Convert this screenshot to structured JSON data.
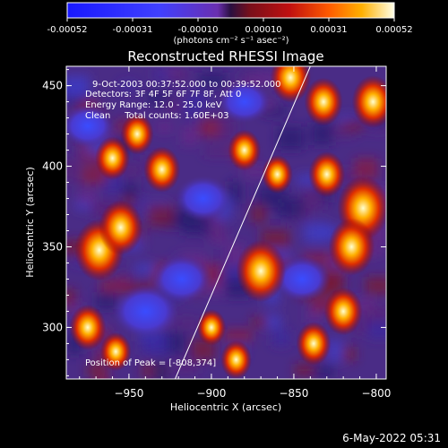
{
  "colorbar": {
    "tick_labels": [
      "-0.00052",
      "-0.00031",
      "-0.00010",
      "0.00010",
      "0.00031",
      "0.00052"
    ],
    "unit_label": "(photons cm⁻² s⁻¹ asec⁻²)",
    "range": [
      -0.00052,
      0.00052
    ]
  },
  "chart_data": {
    "type": "heatmap",
    "title": "Reconstructed RHESSI Image",
    "xlabel": "Heliocentric X (arcsec)",
    "ylabel": "Heliocentric Y (arcsec)",
    "xlim": [
      -988,
      -794
    ],
    "ylim": [
      268,
      462
    ],
    "x_ticks": [
      -950,
      -900,
      -850,
      -800
    ],
    "x_tick_labels": [
      "−950",
      "−900",
      "−850",
      "−800"
    ],
    "y_ticks": [
      300,
      350,
      400,
      450
    ],
    "y_tick_labels": [
      "300",
      "350",
      "400",
      "450"
    ],
    "annotations": [
      "9-Oct-2003 00:37:52.000 to 00:39:52.000",
      "Detectors: 3F 4F 5F 6F 7F 8F, Att 0",
      "Energy Range: 12.0 - 25.0 keV",
      "Clean     Total counts: 1.60E+03"
    ],
    "peak_label": "Position of Peak = [-808,374]",
    "peak_position": [
      -808,
      374
    ],
    "limb_line": [
      [
        -922,
        268
      ],
      [
        -840,
        462
      ]
    ],
    "hot_spots": [
      {
        "x": -968,
        "y": 348,
        "level": 0.95
      },
      {
        "x": -955,
        "y": 362,
        "level": 0.8
      },
      {
        "x": -960,
        "y": 405,
        "level": 0.55
      },
      {
        "x": -945,
        "y": 420,
        "level": 0.5
      },
      {
        "x": -930,
        "y": 398,
        "level": 0.6
      },
      {
        "x": -975,
        "y": 300,
        "level": 0.6
      },
      {
        "x": -958,
        "y": 285,
        "level": 0.45
      },
      {
        "x": -870,
        "y": 335,
        "level": 0.95
      },
      {
        "x": -852,
        "y": 455,
        "level": 0.7
      },
      {
        "x": -832,
        "y": 440,
        "level": 0.65
      },
      {
        "x": -808,
        "y": 374,
        "level": 1.0
      },
      {
        "x": -815,
        "y": 350,
        "level": 0.85
      },
      {
        "x": -802,
        "y": 440,
        "level": 0.75
      },
      {
        "x": -830,
        "y": 395,
        "level": 0.6
      },
      {
        "x": -820,
        "y": 310,
        "level": 0.65
      },
      {
        "x": -838,
        "y": 290,
        "level": 0.55
      },
      {
        "x": -880,
        "y": 410,
        "level": 0.5
      },
      {
        "x": -860,
        "y": 395,
        "level": 0.45
      },
      {
        "x": -900,
        "y": 300,
        "level": 0.4
      },
      {
        "x": -885,
        "y": 280,
        "level": 0.45
      }
    ],
    "cold_spots": [
      {
        "x": -940,
        "y": 310,
        "level": 0.5
      },
      {
        "x": -918,
        "y": 330,
        "level": 0.4
      },
      {
        "x": -905,
        "y": 380,
        "level": 0.35
      },
      {
        "x": -880,
        "y": 440,
        "level": 0.3
      },
      {
        "x": -845,
        "y": 330,
        "level": 0.35
      },
      {
        "x": -975,
        "y": 425,
        "level": 0.3
      }
    ]
  },
  "footer": {
    "timestamp": "6-May-2022 05:31"
  }
}
